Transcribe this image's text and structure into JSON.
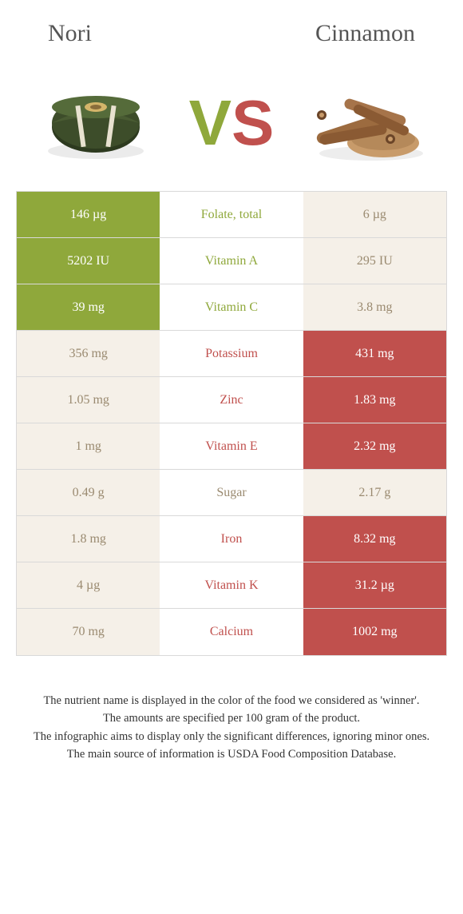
{
  "colors": {
    "nori": "#8fa83b",
    "cinnamon": "#c0504d",
    "neutral_bg": "#f5f0e8",
    "neutral_text": "#9a8a70",
    "border": "#d9d9d9",
    "white": "#ffffff"
  },
  "header": {
    "left": "Nori",
    "right": "Cinnamon"
  },
  "vs": {
    "v": "V",
    "s": "S"
  },
  "rows": [
    {
      "left": "146 µg",
      "mid": "Folate, total",
      "right": "6 µg",
      "winner": "nori"
    },
    {
      "left": "5202 IU",
      "mid": "Vitamin A",
      "right": "295 IU",
      "winner": "nori"
    },
    {
      "left": "39 mg",
      "mid": "Vitamin C",
      "right": "3.8 mg",
      "winner": "nori"
    },
    {
      "left": "356 mg",
      "mid": "Potassium",
      "right": "431 mg",
      "winner": "cinnamon"
    },
    {
      "left": "1.05 mg",
      "mid": "Zinc",
      "right": "1.83 mg",
      "winner": "cinnamon"
    },
    {
      "left": "1 mg",
      "mid": "Vitamin E",
      "right": "2.32 mg",
      "winner": "cinnamon"
    },
    {
      "left": "0.49 g",
      "mid": "Sugar",
      "right": "2.17 g",
      "winner": "none"
    },
    {
      "left": "1.8 mg",
      "mid": "Iron",
      "right": "8.32 mg",
      "winner": "cinnamon"
    },
    {
      "left": "4 µg",
      "mid": "Vitamin K",
      "right": "31.2 µg",
      "winner": "cinnamon"
    },
    {
      "left": "70 mg",
      "mid": "Calcium",
      "right": "1002 mg",
      "winner": "cinnamon"
    }
  ],
  "footer": {
    "l1": "The nutrient name is displayed in the color of the food we considered as 'winner'.",
    "l2": "The amounts are specified per 100 gram of the product.",
    "l3": "The infographic aims to display only the significant differences, ignoring minor ones.",
    "l4": "The main source of information is USDA Food Composition Database."
  }
}
